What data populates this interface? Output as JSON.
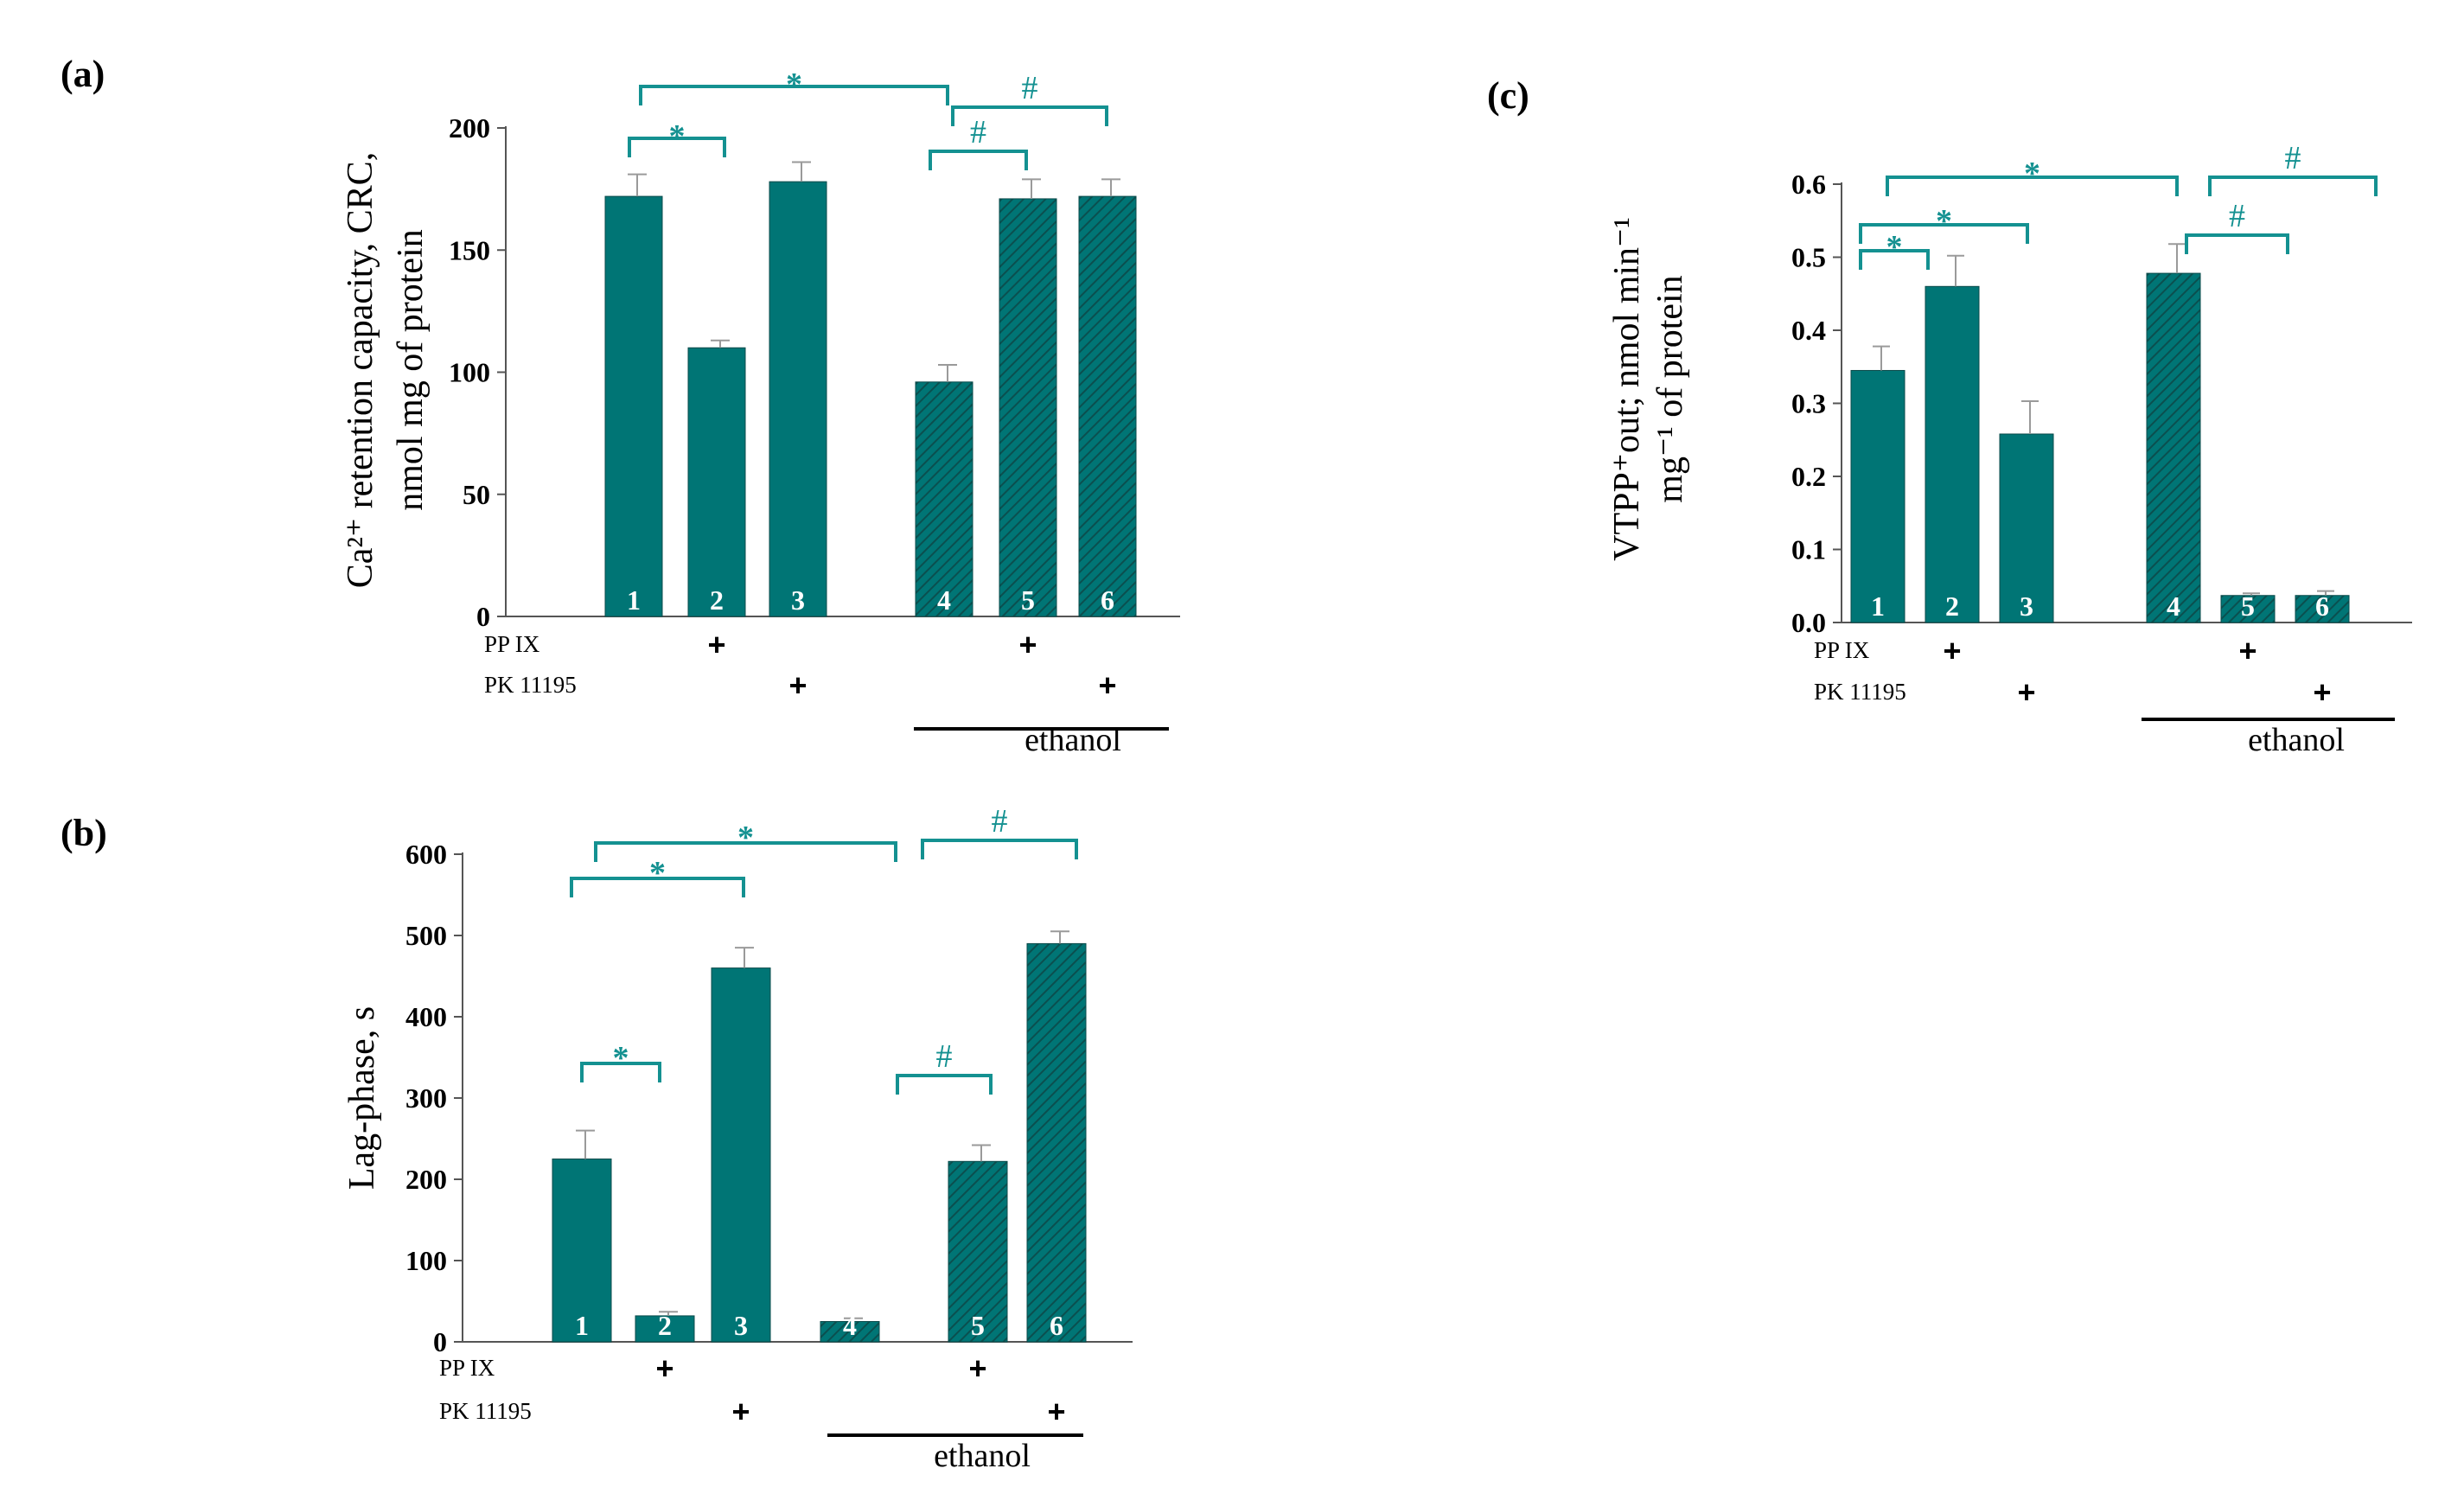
{
  "colors": {
    "bar": "#007575",
    "bracket": "#149191",
    "hatch": "#0b4f4f"
  },
  "row_labels": {
    "ppix": "PP IX",
    "pk": "PK 11195",
    "plus": "+",
    "ethanol": "ethanol"
  },
  "chart_data": [
    {
      "panel": "(a)",
      "type": "bar",
      "ylabel_lines": [
        "Ca²⁺ retention capacity, CRC,",
        "nmol mg of protein"
      ],
      "ylim": [
        0,
        200
      ],
      "yticks": [
        0,
        50,
        100,
        150,
        200
      ],
      "ytick_labels": [
        "0",
        "50",
        "100",
        "150",
        "200"
      ],
      "categories": [
        "1",
        "2",
        "3",
        "4",
        "5",
        "6"
      ],
      "values": [
        172,
        110,
        178,
        96,
        171,
        172
      ],
      "errors": [
        9,
        3,
        8,
        7,
        8,
        7
      ],
      "hatched": [
        false,
        false,
        false,
        true,
        true,
        true
      ],
      "ppix": [
        false,
        true,
        false,
        false,
        true,
        false
      ],
      "pk11195": [
        false,
        false,
        true,
        false,
        false,
        true
      ],
      "ethanol_bars": [
        "4",
        "5",
        "6"
      ],
      "significance": [
        {
          "from": "1",
          "to": "2",
          "symbol": "*"
        },
        {
          "from": "1",
          "to": "4",
          "symbol": "*"
        },
        {
          "from": "4",
          "to": "5",
          "symbol": "#"
        },
        {
          "from": "4",
          "to": "6",
          "symbol": "#"
        }
      ]
    },
    {
      "panel": "(b)",
      "type": "bar",
      "ylabel_lines": [
        "Lag-phase, s"
      ],
      "ylim": [
        0,
        600
      ],
      "yticks": [
        0,
        100,
        200,
        300,
        400,
        500,
        600
      ],
      "ytick_labels": [
        "0",
        "100",
        "200",
        "300",
        "400",
        "500",
        "600"
      ],
      "categories": [
        "1",
        "2",
        "3",
        "4",
        "5",
        "6"
      ],
      "values": [
        225,
        32,
        460,
        25,
        222,
        490
      ],
      "errors": [
        35,
        5,
        25,
        4,
        20,
        15
      ],
      "hatched": [
        false,
        false,
        false,
        true,
        true,
        true
      ],
      "ppix": [
        false,
        true,
        false,
        false,
        true,
        false
      ],
      "pk11195": [
        false,
        false,
        true,
        false,
        false,
        true
      ],
      "ethanol_bars": [
        "4",
        "5",
        "6"
      ],
      "significance": [
        {
          "from": "1",
          "to": "2",
          "symbol": "*"
        },
        {
          "from": "1",
          "to": "3",
          "symbol": "*"
        },
        {
          "from": "1",
          "to": "4",
          "symbol": "*"
        },
        {
          "from": "4",
          "to": "5",
          "symbol": "#"
        },
        {
          "from": "4",
          "to": "6",
          "symbol": "#"
        }
      ]
    },
    {
      "panel": "(c)",
      "type": "bar",
      "ylabel_lines": [
        "VTPP⁺out; nmol min⁻¹",
        "mg⁻¹ of protein"
      ],
      "ylim": [
        0,
        0.6
      ],
      "yticks": [
        0,
        0.1,
        0.2,
        0.3,
        0.4,
        0.5,
        0.6
      ],
      "ytick_labels": [
        "0.0",
        "0.1",
        "0.2",
        "0.3",
        "0.4",
        "0.5",
        "0.6"
      ],
      "categories": [
        "1",
        "2",
        "3",
        "4",
        "5",
        "6"
      ],
      "values": [
        0.345,
        0.46,
        0.258,
        0.478,
        0.037,
        0.037
      ],
      "errors": [
        0.033,
        0.042,
        0.045,
        0.04,
        0.003,
        0.006
      ],
      "hatched": [
        false,
        false,
        false,
        true,
        true,
        true
      ],
      "ppix": [
        false,
        true,
        false,
        false,
        true,
        false
      ],
      "pk11195": [
        false,
        false,
        true,
        false,
        false,
        true
      ],
      "ethanol_bars": [
        "4",
        "5",
        "6"
      ],
      "significance": [
        {
          "from": "1",
          "to": "2",
          "symbol": "*"
        },
        {
          "from": "1",
          "to": "3",
          "symbol": "*"
        },
        {
          "from": "1",
          "to": "4",
          "symbol": "*"
        },
        {
          "from": "4",
          "to": "5",
          "symbol": "#"
        },
        {
          "from": "4",
          "to": "6",
          "symbol": "#"
        }
      ]
    }
  ]
}
